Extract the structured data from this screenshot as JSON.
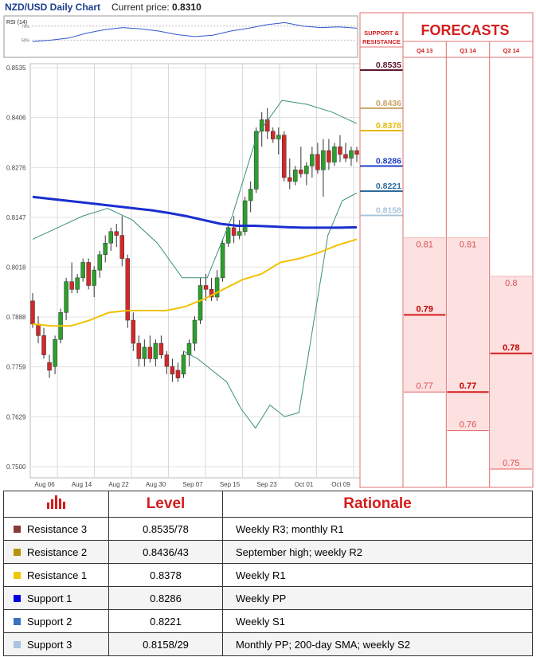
{
  "header": {
    "title": "NZD/USD Daily Chart",
    "price_label": "Current price:",
    "price_value": "0.8310"
  },
  "rsi_label": "RSI (14)",
  "rsi_ticks": [
    "70%",
    "50%"
  ],
  "sr_header": [
    "SUPPORT &",
    "RESISTANCE"
  ],
  "forecasts_title": "FORECASTS",
  "forecast_columns": [
    "Q4 13",
    "Q1 14",
    "Q2 14"
  ],
  "chart_data": {
    "type": "candlestick",
    "ylim": [
      0.75,
      0.8535
    ],
    "y_ticks": [
      "0.8535",
      "0.8406",
      "0.8276",
      "0.8147",
      "0.8018",
      "0.7888",
      "0.7759",
      "0.7629",
      "0.7500"
    ],
    "x_ticks": [
      "Aug 06",
      "Aug 14",
      "Aug 22",
      "Aug 30",
      "Sep 07",
      "Sep 15",
      "Sep 23",
      "Oct 01",
      "Oct 09"
    ],
    "candles": [
      [
        0.793,
        0.795,
        0.786,
        0.787
      ],
      [
        0.787,
        0.789,
        0.782,
        0.784
      ],
      [
        0.784,
        0.786,
        0.778,
        0.779
      ],
      [
        0.777,
        0.779,
        0.773,
        0.775
      ],
      [
        0.776,
        0.784,
        0.774,
        0.783
      ],
      [
        0.783,
        0.791,
        0.782,
        0.79
      ],
      [
        0.79,
        0.799,
        0.788,
        0.798
      ],
      [
        0.798,
        0.803,
        0.795,
        0.796
      ],
      [
        0.796,
        0.8,
        0.795,
        0.799
      ],
      [
        0.799,
        0.804,
        0.798,
        0.803
      ],
      [
        0.803,
        0.804,
        0.796,
        0.797
      ],
      [
        0.797,
        0.802,
        0.794,
        0.801
      ],
      [
        0.801,
        0.806,
        0.799,
        0.805
      ],
      [
        0.805,
        0.81,
        0.803,
        0.808
      ],
      [
        0.808,
        0.812,
        0.806,
        0.811
      ],
      [
        0.811,
        0.813,
        0.807,
        0.81
      ],
      [
        0.81,
        0.815,
        0.802,
        0.804
      ],
      [
        0.804,
        0.805,
        0.786,
        0.788
      ],
      [
        0.788,
        0.79,
        0.78,
        0.782
      ],
      [
        0.782,
        0.784,
        0.776,
        0.778
      ],
      [
        0.778,
        0.783,
        0.776,
        0.781
      ],
      [
        0.781,
        0.784,
        0.777,
        0.778
      ],
      [
        0.778,
        0.783,
        0.776,
        0.782
      ],
      [
        0.782,
        0.784,
        0.778,
        0.779
      ],
      [
        0.779,
        0.78,
        0.774,
        0.776
      ],
      [
        0.776,
        0.778,
        0.772,
        0.774
      ],
      [
        0.775,
        0.777,
        0.772,
        0.773
      ],
      [
        0.774,
        0.78,
        0.773,
        0.779
      ],
      [
        0.779,
        0.783,
        0.776,
        0.782
      ],
      [
        0.782,
        0.789,
        0.78,
        0.788
      ],
      [
        0.788,
        0.799,
        0.787,
        0.797
      ],
      [
        0.797,
        0.8,
        0.793,
        0.796
      ],
      [
        0.796,
        0.799,
        0.793,
        0.794
      ],
      [
        0.794,
        0.801,
        0.793,
        0.799
      ],
      [
        0.799,
        0.809,
        0.798,
        0.808
      ],
      [
        0.808,
        0.813,
        0.807,
        0.812
      ],
      [
        0.812,
        0.815,
        0.808,
        0.81
      ],
      [
        0.81,
        0.814,
        0.809,
        0.811
      ],
      [
        0.811,
        0.82,
        0.81,
        0.819
      ],
      [
        0.819,
        0.824,
        0.816,
        0.822
      ],
      [
        0.822,
        0.838,
        0.821,
        0.837
      ],
      [
        0.837,
        0.842,
        0.833,
        0.84
      ],
      [
        0.84,
        0.843,
        0.835,
        0.837
      ],
      [
        0.837,
        0.838,
        0.834,
        0.835
      ],
      [
        0.835,
        0.838,
        0.831,
        0.836
      ],
      [
        0.836,
        0.837,
        0.824,
        0.825
      ],
      [
        0.825,
        0.83,
        0.822,
        0.824
      ],
      [
        0.824,
        0.828,
        0.823,
        0.827
      ],
      [
        0.827,
        0.833,
        0.825,
        0.826
      ],
      [
        0.826,
        0.829,
        0.823,
        0.828
      ],
      [
        0.828,
        0.833,
        0.825,
        0.831
      ],
      [
        0.831,
        0.834,
        0.826,
        0.827
      ],
      [
        0.827,
        0.835,
        0.82,
        0.832
      ],
      [
        0.832,
        0.835,
        0.827,
        0.829
      ],
      [
        0.829,
        0.834,
        0.828,
        0.833
      ],
      [
        0.833,
        0.836,
        0.829,
        0.831
      ],
      [
        0.831,
        0.834,
        0.829,
        0.83
      ],
      [
        0.83,
        0.833,
        0.828,
        0.832
      ],
      [
        0.832,
        0.833,
        0.829,
        0.831
      ]
    ],
    "sma_200": [
      0.82,
      0.8195,
      0.819,
      0.8185,
      0.818,
      0.8175,
      0.817,
      0.8165,
      0.8158,
      0.815,
      0.814,
      0.813,
      0.8125,
      0.8125,
      0.8123,
      0.8121,
      0.812,
      0.812,
      0.812,
      0.8121
    ],
    "sma_short": [
      0.787,
      0.7865,
      0.7865,
      0.788,
      0.79,
      0.7905,
      0.7905,
      0.7905,
      0.7915,
      0.7935,
      0.796,
      0.7985,
      0.8,
      0.803,
      0.804,
      0.8055,
      0.8075,
      0.809
    ],
    "boll_upper": [
      0.809,
      0.812,
      0.815,
      0.817,
      0.814,
      0.808,
      0.799,
      0.799,
      0.815,
      0.836,
      0.845,
      0.844,
      0.842,
      0.839
    ],
    "boll_lower": [
      0.78,
      0.778,
      0.775,
      0.772,
      0.765,
      0.76,
      0.766,
      0.763,
      0.764,
      0.787,
      0.81,
      0.819,
      0.821
    ],
    "rsi": [
      48,
      50,
      53,
      60,
      65,
      68,
      66,
      63,
      58,
      55,
      57,
      63,
      67,
      72,
      75,
      70,
      68,
      69,
      67
    ],
    "support_resistance": [
      {
        "value": "0.8535",
        "color": "#5c1a2e",
        "y": 0.8535
      },
      {
        "value": "0.8436",
        "color": "#c8a464",
        "y": 0.8436
      },
      {
        "value": "0.8378",
        "color": "#e6b800",
        "y": 0.8378
      },
      {
        "value": "0.8286",
        "color": "#1f3cc8",
        "y": 0.8286
      },
      {
        "value": "0.8221",
        "color": "#2f6a9c",
        "y": 0.8221
      },
      {
        "value": "0.8158",
        "color": "#a8c4dc",
        "y": 0.8158
      }
    ],
    "forecasts": [
      {
        "quarter": "Q4 13",
        "high": "0.81",
        "mid": "0.79",
        "low": "0.77",
        "high_v": 0.81,
        "mid_v": 0.79,
        "low_v": 0.77
      },
      {
        "quarter": "Q1 14",
        "high": "0.81",
        "mid": "0.77",
        "low": "0.76",
        "high_v": 0.81,
        "mid_v": 0.77,
        "low_v": 0.76
      },
      {
        "quarter": "Q2 14",
        "high": "0.8",
        "mid": "0.78",
        "low": "0.75",
        "high_v": 0.8,
        "mid_v": 0.78,
        "low_v": 0.75
      }
    ]
  },
  "table": {
    "headers": [
      "",
      "Level",
      "Rationale"
    ],
    "rows": [
      {
        "name": "Resistance 3",
        "level": "0.8535/78",
        "rationale": "Weekly R3; monthly R1",
        "color": "#8b3a3a"
      },
      {
        "name": "Resistance 2",
        "level": "0.8436/43",
        "rationale": "September high; weekly R2",
        "color": "#b8920c"
      },
      {
        "name": "Resistance 1",
        "level": "0.8378",
        "rationale": "Weekly R1",
        "color": "#f0c800"
      },
      {
        "name": "Support 1",
        "level": "0.8286",
        "rationale": "Weekly PP",
        "color": "#0000e0"
      },
      {
        "name": "Support 2",
        "level": "0.8221",
        "rationale": "Weekly S1",
        "color": "#3b70c0"
      },
      {
        "name": "Support 3",
        "level": "0.8158/29",
        "rationale": "Monthly PP; 200-day SMA; weekly S2",
        "color": "#a8c4e0"
      }
    ]
  }
}
